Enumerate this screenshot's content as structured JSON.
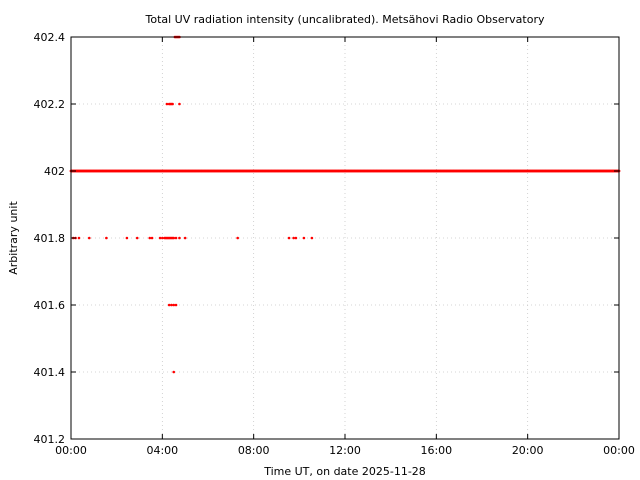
{
  "chart_data": {
    "type": "scatter",
    "title": "Total UV radiation intensity (uncalibrated). Metsähovi Radio Observatory",
    "xlabel": "Time UT, on date 2025-11-28",
    "ylabel": "Arbitrary unit",
    "xlim": [
      "00:00",
      "24:00"
    ],
    "ylim": [
      401.2,
      402.4
    ],
    "x_ticks": [
      "00:00",
      "04:00",
      "08:00",
      "12:00",
      "16:00",
      "20:00",
      "00:00"
    ],
    "y_ticks": [
      "401.2",
      "401.4",
      "401.6",
      "401.8",
      "402",
      "402.2",
      "402.4"
    ],
    "grid": true,
    "legend": "none",
    "point_color": "#ff0000",
    "series": [
      {
        "x_hours": [
          0.1,
          0.2,
          0.35,
          0.8,
          1.55,
          2.45,
          2.9,
          3.45,
          3.55,
          3.9,
          4.0,
          4.1,
          4.15,
          4.2,
          4.25,
          4.3,
          4.35,
          4.4,
          4.45,
          4.5,
          4.6,
          4.75,
          5.0,
          7.3,
          9.55,
          9.75,
          9.85,
          10.2,
          10.55
        ],
        "values": [
          401.8,
          401.8,
          401.8,
          401.8,
          401.8,
          401.8,
          401.8,
          401.8,
          401.8,
          401.8,
          401.8,
          401.8,
          401.8,
          401.8,
          401.8,
          401.8,
          401.8,
          401.8,
          401.8,
          401.8,
          401.8,
          401.8,
          401.8,
          401.8,
          401.8,
          401.8,
          401.8,
          401.8,
          401.8
        ]
      },
      {
        "x_hours": [
          4.2,
          4.3,
          4.35,
          4.4,
          4.45,
          4.75
        ],
        "values": [
          402.2,
          402.2,
          402.2,
          402.2,
          402.2,
          402.2
        ]
      },
      {
        "x_hours": [
          4.55,
          4.6,
          4.65,
          4.7,
          4.75
        ],
        "values": [
          402.4,
          402.4,
          402.4,
          402.4,
          402.4
        ]
      },
      {
        "x_hours": [
          4.3,
          4.4,
          4.5,
          4.6
        ],
        "values": [
          401.6,
          401.6,
          401.6,
          401.6
        ]
      },
      {
        "x_hours": [
          4.5
        ],
        "values": [
          401.4
        ]
      }
    ],
    "continuous_series": {
      "value": 402,
      "x_start_hours": 0,
      "x_end_hours": 24,
      "step_minutes": 2
    }
  }
}
